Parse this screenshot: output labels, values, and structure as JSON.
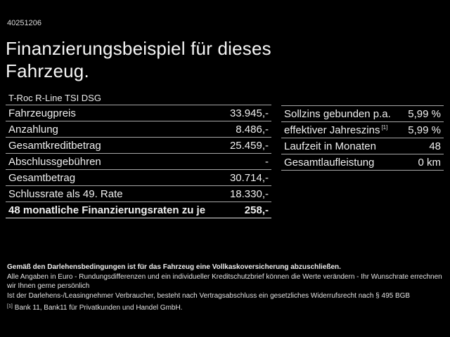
{
  "page": {
    "doc_id": "40251206",
    "title": "Finanzierungsbeispiel für dieses Fahrzeug.",
    "vehicle": "T-Roc R-Line TSI DSG"
  },
  "finance_table": {
    "rows": [
      {
        "label": "Fahrzeugpreis",
        "value": "33.945,-"
      },
      {
        "label": "Anzahlung",
        "value": "8.486,-"
      },
      {
        "label": "Gesamtkreditbetrag",
        "value": "25.459,-"
      },
      {
        "label": "Abschlussgebühren",
        "value": "-"
      },
      {
        "label": "Gesamtbetrag",
        "value": "30.714,-"
      },
      {
        "label": "Schlussrate als 49. Rate",
        "value": "18.330,-"
      },
      {
        "label": "48 monatliche Finanzierungsraten zu je",
        "value": "258,-"
      }
    ]
  },
  "conditions_table": {
    "rows": [
      {
        "label": "Sollzins gebunden p.a.",
        "value": "5,99 %"
      },
      {
        "label": "effektiver Jahreszins",
        "footnote": "[1]",
        "value": "5,99 %"
      },
      {
        "label": "Laufzeit in Monaten",
        "value": "48"
      },
      {
        "label": "Gesamtlaufleistung",
        "value": "0 km"
      }
    ]
  },
  "footer": {
    "line1": "Gemäß den Darlehensbedingungen ist für das Fahrzeug eine Vollkaskoversicherung abzuschließen.",
    "line2": "Alle Angaben in Euro - Rundungsdifferenzen und ein individueller Kreditschutzbrief können die Werte verändern - Ihr Wunschrate errechnen wir Ihnen gerne persönlich",
    "line3": "Ist der Darlehens-/Leasingnehmer Verbraucher, besteht nach Vertragsabschluss ein gesetzliches Widerrufsrecht nach § 495 BGB",
    "footnote_marker": "[1]",
    "footnote_text": "Bank 11, Bank11 für Privatkunden und Handel GmbH."
  },
  "colors": {
    "background": "#000000",
    "text": "#f0f0f0",
    "divider": "#a8a8a8",
    "divider_strong": "#e8e8e8"
  }
}
